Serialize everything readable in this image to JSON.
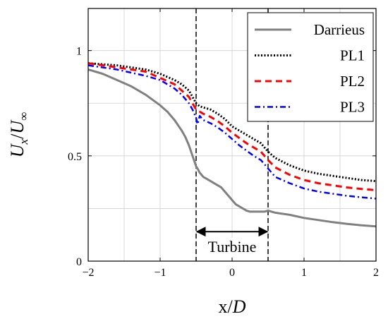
{
  "chart_data": {
    "type": "line",
    "xlabel_prefix": "x/",
    "xlabel_var": "D",
    "ylabel_num": "U",
    "ylabel_num_sub": "x",
    "ylabel_den": "U",
    "ylabel_den_sub": "∞",
    "xlim": [
      -2,
      2
    ],
    "ylim": [
      0,
      1.2
    ],
    "x_ticks": [
      -2,
      -1,
      0,
      1,
      2
    ],
    "x_tick_labels": [
      "−2",
      "−1",
      "0",
      "1",
      "2"
    ],
    "y_ticks": [
      0,
      0.5,
      1
    ],
    "y_tick_labels": [
      "0",
      "0.5",
      "1"
    ],
    "grid": true,
    "legend_position": "top-right",
    "colors": {
      "Darrieus": "#808080",
      "PL1": "#000000",
      "PL2": "#ff0000",
      "PL3": "#0000ff"
    },
    "series": [
      {
        "name": "Darrieus",
        "style": "solid",
        "x": [
          -2,
          -1.8,
          -1.6,
          -1.4,
          -1.2,
          -1.0,
          -0.9,
          -0.8,
          -0.7,
          -0.65,
          -0.6,
          -0.55,
          -0.52,
          -0.5,
          -0.48,
          -0.45,
          -0.4,
          -0.35,
          -0.3,
          -0.25,
          -0.2,
          -0.15,
          -0.1,
          -0.05,
          0,
          0.05,
          0.1,
          0.15,
          0.2,
          0.25,
          0.3,
          0.35,
          0.4,
          0.45,
          0.5,
          0.55,
          0.6,
          0.8,
          1.0,
          1.2,
          1.4,
          1.6,
          1.8,
          2.0
        ],
        "y": [
          0.91,
          0.89,
          0.86,
          0.83,
          0.79,
          0.74,
          0.71,
          0.67,
          0.62,
          0.59,
          0.55,
          0.5,
          0.47,
          0.45,
          0.44,
          0.42,
          0.4,
          0.39,
          0.38,
          0.37,
          0.36,
          0.35,
          0.33,
          0.31,
          0.29,
          0.27,
          0.26,
          0.25,
          0.24,
          0.235,
          0.235,
          0.235,
          0.235,
          0.235,
          0.24,
          0.235,
          0.23,
          0.22,
          0.205,
          0.195,
          0.185,
          0.177,
          0.17,
          0.165
        ]
      },
      {
        "name": "PL1",
        "style": "dotted",
        "x": [
          -2,
          -1.6,
          -1.2,
          -1.0,
          -0.8,
          -0.7,
          -0.6,
          -0.55,
          -0.5,
          -0.45,
          -0.4,
          -0.3,
          -0.2,
          -0.1,
          0,
          0.1,
          0.2,
          0.3,
          0.4,
          0.5,
          0.6,
          0.8,
          1.0,
          1.2,
          1.4,
          1.6,
          1.8,
          2.0
        ],
        "y": [
          0.94,
          0.93,
          0.91,
          0.89,
          0.86,
          0.84,
          0.81,
          0.78,
          0.75,
          0.735,
          0.73,
          0.72,
          0.7,
          0.675,
          0.64,
          0.62,
          0.6,
          0.58,
          0.56,
          0.52,
          0.49,
          0.455,
          0.43,
          0.415,
          0.405,
          0.395,
          0.385,
          0.38
        ]
      },
      {
        "name": "PL2",
        "style": "dashed",
        "x": [
          -2,
          -1.6,
          -1.2,
          -1.0,
          -0.8,
          -0.7,
          -0.6,
          -0.55,
          -0.5,
          -0.45,
          -0.4,
          -0.3,
          -0.2,
          -0.1,
          0,
          0.1,
          0.2,
          0.3,
          0.4,
          0.5,
          0.6,
          0.8,
          1.0,
          1.2,
          1.4,
          1.6,
          1.8,
          2.0
        ],
        "y": [
          0.94,
          0.92,
          0.9,
          0.87,
          0.84,
          0.81,
          0.78,
          0.75,
          0.72,
          0.71,
          0.7,
          0.685,
          0.665,
          0.64,
          0.61,
          0.585,
          0.56,
          0.54,
          0.52,
          0.48,
          0.445,
          0.41,
          0.385,
          0.37,
          0.36,
          0.35,
          0.343,
          0.337
        ]
      },
      {
        "name": "PL3",
        "style": "dashdot",
        "x": [
          -2,
          -1.6,
          -1.2,
          -1.0,
          -0.8,
          -0.7,
          -0.6,
          -0.55,
          -0.5,
          -0.48,
          -0.45,
          -0.4,
          -0.3,
          -0.2,
          -0.1,
          0,
          0.1,
          0.2,
          0.3,
          0.4,
          0.5,
          0.6,
          0.8,
          1.0,
          1.2,
          1.4,
          1.6,
          1.8,
          2.0
        ],
        "y": [
          0.93,
          0.91,
          0.88,
          0.86,
          0.82,
          0.79,
          0.75,
          0.72,
          0.68,
          0.65,
          0.69,
          0.67,
          0.655,
          0.635,
          0.61,
          0.58,
          0.55,
          0.525,
          0.5,
          0.48,
          0.44,
          0.4,
          0.37,
          0.345,
          0.33,
          0.32,
          0.31,
          0.303,
          0.297
        ]
      }
    ],
    "annotations": {
      "turbine_label": "Turbine",
      "turbine_start": -0.5,
      "turbine_end": 0.5,
      "arrow_y": 0.14
    }
  }
}
